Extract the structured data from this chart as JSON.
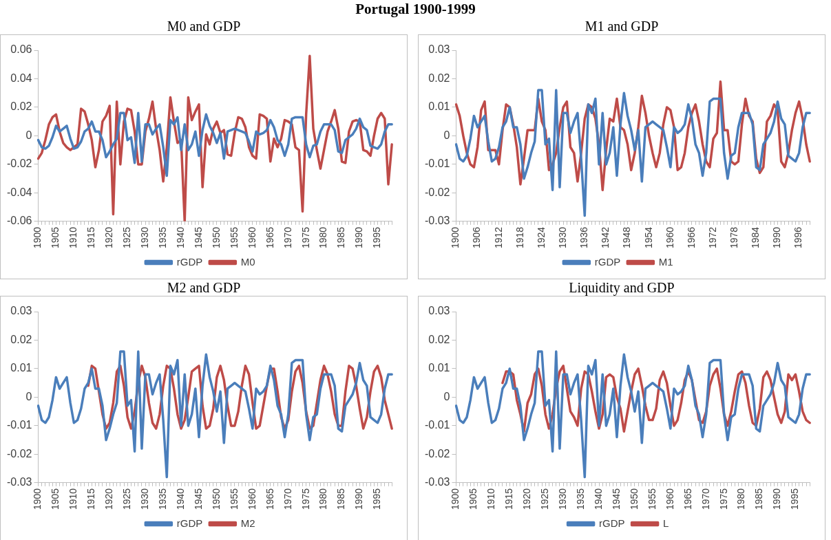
{
  "chart_data": [
    {
      "type": "other",
      "title": "Portugal 1900-1999"
    },
    {
      "type": "line",
      "title": "M0 and GDP",
      "categories": [
        "1900",
        null,
        null,
        null,
        null,
        "1905",
        null,
        null,
        null,
        null,
        "1910",
        null,
        null,
        null,
        null,
        "1915",
        null,
        null,
        null,
        null,
        "1920",
        null,
        null,
        null,
        null,
        "1925",
        null,
        null,
        null,
        null,
        "1930",
        null,
        null,
        null,
        null,
        "1935",
        null,
        null,
        null,
        null,
        "1940",
        null,
        null,
        null,
        null,
        "1945",
        null,
        null,
        null,
        null,
        "1950",
        null,
        null,
        null,
        null,
        "1955",
        null,
        null,
        null,
        null,
        "1960",
        null,
        null,
        null,
        null,
        "1965",
        null,
        null,
        null,
        null,
        "1970",
        null,
        null,
        null,
        null,
        "1975",
        null,
        null,
        null,
        null,
        "1980",
        null,
        null,
        null,
        null,
        "1985",
        null,
        null,
        null,
        null,
        "1990",
        null,
        null,
        null,
        null,
        "1995",
        null,
        null,
        null,
        null
      ],
      "series": [
        {
          "name": "rGDP",
          "color": "#4a7ebb",
          "values": [
            -0.003,
            -0.008,
            -0.009,
            -0.007,
            -0.001,
            0.007,
            0.003,
            0.005,
            0.007,
            -0.002,
            -0.009,
            -0.008,
            -0.004,
            0.003,
            0.005,
            0.01,
            0.003,
            0.003,
            -0.003,
            -0.015,
            -0.011,
            -0.006,
            -0.002,
            0.016,
            0.016,
            -0.003,
            -0.001,
            -0.019,
            0.016,
            -0.018,
            0.008,
            0.008,
            0.001,
            0.005,
            0.008,
            -0.008,
            -0.028,
            0.011,
            0.008,
            0.013,
            -0.01,
            0.008,
            -0.01,
            -0.006,
            0.003,
            -0.014,
            0.004,
            0.015,
            0.007,
            0.002,
            -0.005,
            0.002,
            -0.016,
            0.003,
            0.004,
            0.005,
            0.004,
            0.003,
            0.002,
            -0.004,
            -0.011,
            0.003,
            0.001,
            0.002,
            0.004,
            0.011,
            0.006,
            -0.003,
            -0.006,
            -0.014,
            -0.006,
            0.012,
            0.013,
            0.013,
            0.013,
            -0.006,
            -0.015,
            -0.007,
            -0.006,
            0.003,
            0.008,
            0.008,
            0.008,
            0.004,
            -0.011,
            -0.012,
            -0.003,
            -0.001,
            0.001,
            0.005,
            0.012,
            0.006,
            0.004,
            -0.007,
            -0.008,
            -0.009,
            -0.006,
            0.003,
            0.008,
            0.008
          ]
        },
        {
          "name": "M0",
          "color": "#be4b48",
          "values": [
            -0.016,
            -0.012,
            -0.003,
            0.008,
            0.013,
            0.015,
            0.003,
            -0.005,
            -0.008,
            -0.01,
            -0.008,
            -0.006,
            0.019,
            0.017,
            0.008,
            -0.003,
            -0.022,
            -0.01,
            0.01,
            0.014,
            0.021,
            -0.055,
            0.024,
            -0.02,
            0.01,
            0.019,
            0.018,
            0.003,
            -0.02,
            -0.02,
            0.003,
            0.012,
            0.024,
            0.005,
            -0.01,
            -0.032,
            -0.008,
            0.027,
            0.01,
            -0.005,
            -0.003,
            -0.06,
            0.027,
            0.011,
            0.017,
            0.022,
            -0.036,
            0.001,
            -0.006,
            0.005,
            0.01,
            0.002,
            0.004,
            -0.013,
            -0.014,
            0.002,
            0.013,
            0.012,
            0.006,
            -0.008,
            -0.014,
            -0.016,
            0.015,
            0.014,
            0.012,
            -0.018,
            -0.002,
            -0.008,
            -0.002,
            0.011,
            0.01,
            0.008,
            -0.008,
            -0.01,
            -0.053,
            0.015,
            0.056,
            0.005,
            -0.01,
            -0.023,
            -0.01,
            0.003,
            0.01,
            0.018,
            0.005,
            -0.018,
            -0.019,
            0.003,
            0.01,
            0.011,
            0.01,
            -0.01,
            -0.011,
            -0.014,
            0.0,
            0.012,
            0.016,
            0.012,
            -0.034,
            -0.006
          ]
        }
      ],
      "ylim": [
        -0.06,
        0.06
      ],
      "yticks": [
        -0.06,
        -0.04,
        -0.02,
        0,
        0.02,
        0.04,
        0.06
      ],
      "legend": "bottom",
      "grid": false
    },
    {
      "type": "line",
      "title": "M1 and GDP",
      "categories": [
        "1900",
        null,
        null,
        null,
        null,
        null,
        "1906",
        null,
        null,
        null,
        null,
        null,
        "1912",
        null,
        null,
        null,
        null,
        null,
        "1918",
        null,
        null,
        null,
        null,
        null,
        "1924",
        null,
        null,
        null,
        null,
        null,
        "1930",
        null,
        null,
        null,
        null,
        null,
        "1936",
        null,
        null,
        null,
        null,
        null,
        "1942",
        null,
        null,
        null,
        null,
        null,
        "1948",
        null,
        null,
        null,
        null,
        null,
        "1954",
        null,
        null,
        null,
        null,
        null,
        "1960",
        null,
        null,
        null,
        null,
        null,
        "1966",
        null,
        null,
        null,
        null,
        null,
        "1972",
        null,
        null,
        null,
        null,
        null,
        "1978",
        null,
        null,
        null,
        null,
        null,
        "1984",
        null,
        null,
        null,
        null,
        null,
        "1990",
        null,
        null,
        null,
        null,
        null,
        "1996",
        null,
        null,
        null
      ],
      "series": [
        {
          "name": "rGDP",
          "color": "#4a7ebb",
          "values": [
            -0.003,
            -0.008,
            -0.009,
            -0.007,
            -0.001,
            0.007,
            0.003,
            0.005,
            0.007,
            -0.002,
            -0.009,
            -0.008,
            -0.004,
            0.003,
            0.005,
            0.01,
            0.003,
            0.003,
            -0.003,
            -0.015,
            -0.011,
            -0.006,
            -0.002,
            0.016,
            0.016,
            -0.003,
            -0.001,
            -0.019,
            0.016,
            -0.018,
            0.008,
            0.008,
            0.001,
            0.005,
            0.008,
            -0.008,
            -0.028,
            0.011,
            0.008,
            0.013,
            -0.01,
            0.008,
            -0.01,
            -0.006,
            0.003,
            -0.014,
            0.004,
            0.015,
            0.007,
            0.002,
            -0.005,
            0.002,
            -0.016,
            0.003,
            0.004,
            0.005,
            0.004,
            0.003,
            0.002,
            -0.004,
            -0.011,
            0.003,
            0.001,
            0.002,
            0.004,
            0.011,
            0.006,
            -0.003,
            -0.006,
            -0.014,
            -0.006,
            0.012,
            0.013,
            0.013,
            0.013,
            -0.006,
            -0.015,
            -0.007,
            -0.006,
            0.003,
            0.008,
            0.008,
            0.008,
            0.004,
            -0.011,
            -0.012,
            -0.003,
            -0.001,
            0.001,
            0.005,
            0.012,
            0.006,
            0.004,
            -0.007,
            -0.008,
            -0.009,
            -0.006,
            0.003,
            0.008,
            0.008
          ]
        },
        {
          "name": "M1",
          "color": "#be4b48",
          "values": [
            0.011,
            0.007,
            0.0,
            -0.006,
            -0.01,
            -0.011,
            -0.004,
            0.009,
            0.012,
            -0.005,
            -0.005,
            -0.005,
            -0.01,
            0.002,
            0.011,
            0.01,
            0.004,
            -0.004,
            -0.017,
            -0.008,
            0.002,
            0.002,
            0.002,
            0.013,
            0.005,
            0.002,
            -0.012,
            -0.01,
            -0.006,
            0.003,
            0.01,
            0.012,
            -0.004,
            -0.006,
            -0.016,
            -0.006,
            0.006,
            0.011,
            0.01,
            0.006,
            -0.003,
            -0.019,
            -0.005,
            0.006,
            0.005,
            0.013,
            0.003,
            0.002,
            -0.003,
            -0.012,
            -0.006,
            0.003,
            0.014,
            0.008,
            0.0,
            -0.006,
            -0.011,
            -0.006,
            0.004,
            0.01,
            0.009,
            0.003,
            -0.012,
            -0.011,
            -0.006,
            0.003,
            0.008,
            0.011,
            0.005,
            -0.003,
            -0.009,
            -0.011,
            -0.001,
            0.001,
            0.019,
            0.002,
            0.002,
            -0.009,
            -0.01,
            -0.009,
            0.004,
            0.013,
            0.007,
            0.005,
            -0.008,
            -0.013,
            -0.011,
            0.005,
            0.007,
            0.011,
            0.009,
            -0.009,
            -0.011,
            -0.006,
            0.002,
            0.008,
            0.012,
            0.006,
            -0.003,
            -0.009
          ]
        }
      ],
      "ylim": [
        -0.03,
        0.03
      ],
      "yticks": [
        -0.03,
        -0.02,
        -0.01,
        0,
        0.01,
        0.02,
        0.03
      ],
      "legend": "bottom",
      "grid": false
    },
    {
      "type": "line",
      "title": "M2 and GDP",
      "categories": [
        "1900",
        null,
        null,
        null,
        null,
        "1905",
        null,
        null,
        null,
        null,
        "1910",
        null,
        null,
        null,
        null,
        "1915",
        null,
        null,
        null,
        null,
        "1920",
        null,
        null,
        null,
        null,
        "1925",
        null,
        null,
        null,
        null,
        "1930",
        null,
        null,
        null,
        null,
        "1935",
        null,
        null,
        null,
        null,
        "1940",
        null,
        null,
        null,
        null,
        "1945",
        null,
        null,
        null,
        null,
        "1950",
        null,
        null,
        null,
        null,
        "1955",
        null,
        null,
        null,
        null,
        "1960",
        null,
        null,
        null,
        null,
        "1965",
        null,
        null,
        null,
        null,
        "1970",
        null,
        null,
        null,
        null,
        "1975",
        null,
        null,
        null,
        null,
        "1980",
        null,
        null,
        null,
        null,
        "1985",
        null,
        null,
        null,
        null,
        "1990",
        null,
        null,
        null,
        null,
        "1995",
        null,
        null,
        null,
        null
      ],
      "series": [
        {
          "name": "rGDP",
          "color": "#4a7ebb",
          "values": [
            -0.003,
            -0.008,
            -0.009,
            -0.007,
            -0.001,
            0.007,
            0.003,
            0.005,
            0.007,
            -0.002,
            -0.009,
            -0.008,
            -0.004,
            0.003,
            0.005,
            0.01,
            0.003,
            0.003,
            -0.003,
            -0.015,
            -0.011,
            -0.006,
            -0.002,
            0.016,
            0.016,
            -0.003,
            -0.001,
            -0.019,
            0.016,
            -0.018,
            0.008,
            0.008,
            0.001,
            0.005,
            0.008,
            -0.008,
            -0.028,
            0.011,
            0.008,
            0.013,
            -0.01,
            0.008,
            -0.01,
            -0.006,
            0.003,
            -0.014,
            0.004,
            0.015,
            0.007,
            0.002,
            -0.005,
            0.002,
            -0.016,
            0.003,
            0.004,
            0.005,
            0.004,
            0.003,
            0.002,
            -0.004,
            -0.011,
            0.003,
            0.001,
            0.002,
            0.004,
            0.011,
            0.006,
            -0.003,
            -0.006,
            -0.014,
            -0.006,
            0.012,
            0.013,
            0.013,
            0.013,
            -0.006,
            -0.015,
            -0.007,
            -0.006,
            0.003,
            0.008,
            0.008,
            0.008,
            0.004,
            -0.011,
            -0.012,
            -0.003,
            -0.001,
            0.001,
            0.005,
            0.012,
            0.006,
            0.004,
            -0.007,
            -0.008,
            -0.009,
            -0.006,
            0.003,
            0.008,
            0.008
          ]
        },
        {
          "name": "M2",
          "color": "#be4b48",
          "values": [
            null,
            null,
            null,
            null,
            null,
            null,
            null,
            null,
            null,
            null,
            null,
            null,
            null,
            null,
            0.004,
            0.011,
            0.01,
            0.002,
            -0.006,
            -0.011,
            -0.009,
            -0.002,
            0.009,
            0.011,
            0.004,
            -0.007,
            -0.011,
            -0.005,
            0.005,
            0.011,
            0.007,
            -0.002,
            -0.009,
            -0.011,
            -0.006,
            0.004,
            0.011,
            0.01,
            0.003,
            -0.006,
            -0.011,
            -0.008,
            0.0,
            0.009,
            0.01,
            0.011,
            -0.003,
            -0.011,
            -0.01,
            -0.004,
            0.007,
            0.011,
            0.006,
            -0.003,
            -0.01,
            -0.01,
            -0.005,
            0.004,
            0.011,
            0.008,
            -0.002,
            -0.011,
            -0.01,
            -0.003,
            0.004,
            0.01,
            0.01,
            0.002,
            -0.007,
            -0.011,
            -0.008,
            0.002,
            0.009,
            0.011,
            0.005,
            -0.005,
            -0.011,
            -0.01,
            -0.002,
            0.006,
            0.011,
            0.008,
            0.002,
            -0.006,
            -0.01,
            -0.01,
            0.002,
            0.011,
            0.01,
            0.004,
            -0.004,
            -0.011,
            -0.007,
            0.002,
            0.009,
            0.011,
            0.007,
            -0.001,
            -0.006,
            -0.011
          ]
        }
      ],
      "ylim": [
        -0.03,
        0.03
      ],
      "yticks": [
        -0.03,
        -0.02,
        -0.01,
        0,
        0.01,
        0.02,
        0.03
      ],
      "legend": "bottom",
      "grid": false
    },
    {
      "type": "line",
      "title": "Liquidity and GDP",
      "categories": [
        "1900",
        null,
        null,
        null,
        null,
        "1905",
        null,
        null,
        null,
        null,
        "1910",
        null,
        null,
        null,
        null,
        "1915",
        null,
        null,
        null,
        null,
        "1920",
        null,
        null,
        null,
        null,
        "1925",
        null,
        null,
        null,
        null,
        "1930",
        null,
        null,
        null,
        null,
        "1935",
        null,
        null,
        null,
        null,
        "1940",
        null,
        null,
        null,
        null,
        "1945",
        null,
        null,
        null,
        null,
        "1950",
        null,
        null,
        null,
        null,
        "1955",
        null,
        null,
        null,
        null,
        "1960",
        null,
        null,
        null,
        null,
        "1965",
        null,
        null,
        null,
        null,
        "1970",
        null,
        null,
        null,
        null,
        "1975",
        null,
        null,
        null,
        null,
        "1980",
        null,
        null,
        null,
        null,
        "1985",
        null,
        null,
        null,
        null,
        "1990",
        null,
        null,
        null,
        null,
        "1995",
        null,
        null,
        null,
        null
      ],
      "series": [
        {
          "name": "rGDP",
          "color": "#4a7ebb",
          "values": [
            -0.003,
            -0.008,
            -0.009,
            -0.007,
            -0.001,
            0.007,
            0.003,
            0.005,
            0.007,
            -0.002,
            -0.009,
            -0.008,
            -0.004,
            0.003,
            0.005,
            0.01,
            0.003,
            0.003,
            -0.003,
            -0.015,
            -0.011,
            -0.006,
            -0.002,
            0.016,
            0.016,
            -0.003,
            -0.001,
            -0.019,
            0.016,
            -0.018,
            0.008,
            0.008,
            0.001,
            0.005,
            0.008,
            -0.008,
            -0.028,
            0.011,
            0.008,
            0.013,
            -0.01,
            0.008,
            -0.01,
            -0.006,
            0.003,
            -0.014,
            0.004,
            0.015,
            0.007,
            0.002,
            -0.005,
            0.002,
            -0.016,
            0.003,
            0.004,
            0.005,
            0.004,
            0.003,
            0.002,
            -0.004,
            -0.011,
            0.003,
            0.001,
            0.002,
            0.004,
            0.011,
            0.006,
            -0.003,
            -0.006,
            -0.014,
            -0.006,
            0.012,
            0.013,
            0.013,
            0.013,
            -0.006,
            -0.015,
            -0.007,
            -0.006,
            0.003,
            0.008,
            0.008,
            0.008,
            0.004,
            -0.011,
            -0.012,
            -0.003,
            -0.001,
            0.001,
            0.005,
            0.012,
            0.006,
            0.004,
            -0.007,
            -0.008,
            -0.009,
            -0.006,
            0.003,
            0.008,
            0.008
          ]
        },
        {
          "name": "L",
          "color": "#be4b48",
          "values": [
            null,
            null,
            null,
            null,
            null,
            null,
            null,
            null,
            null,
            null,
            null,
            null,
            null,
            0.005,
            0.009,
            0.009,
            0.008,
            -0.001,
            -0.006,
            -0.012,
            -0.002,
            0.001,
            0.008,
            0.01,
            0.004,
            -0.006,
            -0.011,
            -0.006,
            0.003,
            0.009,
            0.011,
            0.003,
            -0.005,
            -0.007,
            -0.01,
            0.003,
            0.009,
            0.008,
            0.002,
            -0.005,
            -0.011,
            -0.006,
            0.007,
            0.008,
            0.007,
            0.0,
            -0.004,
            -0.012,
            -0.005,
            0.002,
            0.008,
            0.01,
            0.004,
            -0.003,
            -0.008,
            -0.008,
            -0.004,
            0.006,
            0.009,
            0.005,
            -0.003,
            -0.01,
            -0.008,
            -0.002,
            0.006,
            0.009,
            0.006,
            -0.001,
            -0.008,
            -0.009,
            -0.005,
            0.004,
            0.008,
            0.01,
            0.003,
            -0.006,
            -0.01,
            -0.005,
            0.002,
            0.008,
            0.009,
            0.005,
            -0.003,
            -0.009,
            -0.01,
            -0.004,
            0.007,
            0.009,
            0.006,
            0.0,
            -0.006,
            -0.009,
            -0.005,
            0.008,
            0.006,
            0.008,
            0.002,
            -0.005,
            -0.008,
            -0.009
          ]
        }
      ],
      "ylim": [
        -0.03,
        0.03
      ],
      "yticks": [
        -0.03,
        -0.02,
        -0.01,
        0,
        0.01,
        0.02,
        0.03
      ],
      "legend": "bottom",
      "grid": false
    }
  ]
}
